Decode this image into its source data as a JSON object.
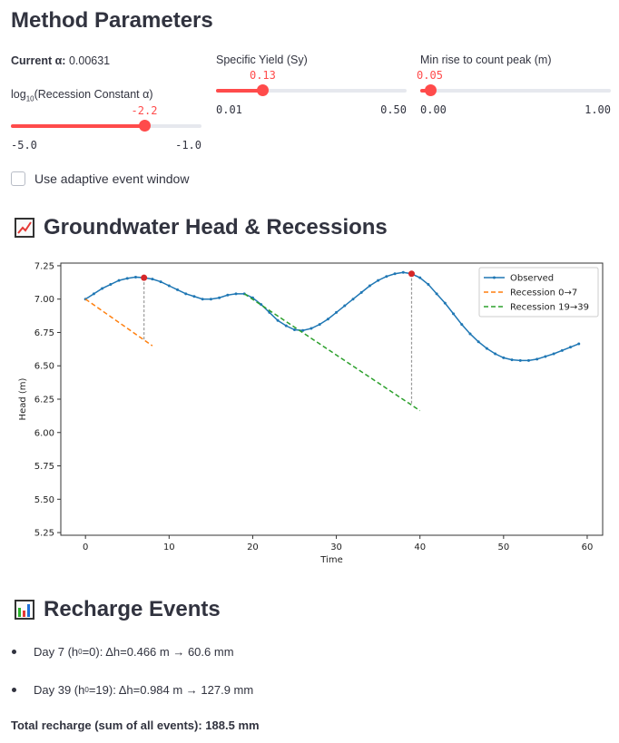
{
  "params": {
    "title": "Method Parameters",
    "current_alpha_label": "Current α:",
    "current_alpha_value": "0.00631",
    "log_alpha": {
      "label_prefix": "log",
      "label_sub": "10",
      "label_suffix": "(Recession Constant α)",
      "value": "-2.2",
      "min": "-5.0",
      "max": "-1.0",
      "fraction": 0.7
    },
    "sy": {
      "label": "Specific Yield (Sy)",
      "value": "0.13",
      "min": "0.01",
      "max": "0.50",
      "fraction": 0.245
    },
    "min_rise": {
      "label": "Min rise to count peak (m)",
      "value": "0.05",
      "min": "0.00",
      "max": "1.00",
      "fraction": 0.05
    },
    "adaptive_checkbox": {
      "label": "Use adaptive event window",
      "checked": false
    }
  },
  "chart_section": {
    "title": "Groundwater Head & Recessions",
    "icon": "chart-increasing-icon"
  },
  "chart_data": {
    "type": "line",
    "xlabel": "Time",
    "ylabel": "Head (m)",
    "xlim": [
      -2.95,
      61.85
    ],
    "ylim": [
      5.23,
      7.27
    ],
    "xticks": [
      0,
      10,
      20,
      30,
      40,
      50,
      60
    ],
    "yticks": [
      "5.25",
      "5.50",
      "5.75",
      "6.00",
      "6.25",
      "6.50",
      "6.75",
      "7.00",
      "7.25"
    ],
    "grid": false,
    "legend_position": "top-right",
    "series": [
      {
        "name": "Observed",
        "color": "#1f77b4",
        "style": "solid-with-markers",
        "x": [
          0,
          1,
          2,
          3,
          4,
          5,
          6,
          7,
          8,
          9,
          10,
          11,
          12,
          13,
          14,
          15,
          16,
          17,
          18,
          19,
          20,
          21,
          22,
          23,
          24,
          25,
          26,
          27,
          28,
          29,
          30,
          31,
          32,
          33,
          34,
          35,
          36,
          37,
          38,
          39,
          40,
          41,
          42,
          43,
          44,
          45,
          46,
          47,
          48,
          49,
          50,
          51,
          52,
          53,
          54,
          55,
          56,
          57,
          58,
          59
        ],
        "y": [
          7.0,
          7.04,
          7.08,
          7.11,
          7.14,
          7.155,
          7.165,
          7.16,
          7.15,
          7.13,
          7.1,
          7.07,
          7.04,
          7.02,
          7.0,
          7.0,
          7.01,
          7.03,
          7.04,
          7.04,
          7.01,
          6.96,
          6.9,
          6.84,
          6.8,
          6.77,
          6.765,
          6.78,
          6.81,
          6.85,
          6.9,
          6.95,
          7.0,
          7.05,
          7.1,
          7.14,
          7.17,
          7.19,
          7.2,
          7.19,
          7.16,
          7.11,
          7.04,
          6.97,
          6.89,
          6.81,
          6.74,
          6.68,
          6.63,
          6.59,
          6.56,
          6.545,
          6.54,
          6.54,
          6.55,
          6.57,
          6.59,
          6.615,
          6.64,
          6.665
        ]
      },
      {
        "name": "Recession 0→7",
        "color": "#ff7f0e",
        "style": "dashed",
        "x": [
          0,
          8
        ],
        "y": [
          7.0,
          6.65
        ]
      },
      {
        "name": "Recession 19→39",
        "color": "#2ca02c",
        "style": "dashed",
        "x": [
          19,
          40
        ],
        "y": [
          7.04,
          6.164
        ]
      }
    ],
    "peaks": [
      {
        "x": 7,
        "y": 7.16,
        "recession_y": 6.694
      },
      {
        "x": 39,
        "y": 7.19,
        "recession_y": 6.206
      }
    ],
    "peak_color": "#d62728"
  },
  "recharge": {
    "title": "Recharge Events",
    "icon": "bar-chart-icon",
    "events": [
      {
        "pre": "Day 7 (h",
        "sub": "0",
        "post": "=0): Δh=0.466 m → 60.6 mm"
      },
      {
        "pre": "Day 39 (h",
        "sub": "0",
        "post": "=19): Δh=0.984 m → 127.9 mm"
      }
    ],
    "total": "Total recharge (sum of all events): 188.5 mm"
  }
}
